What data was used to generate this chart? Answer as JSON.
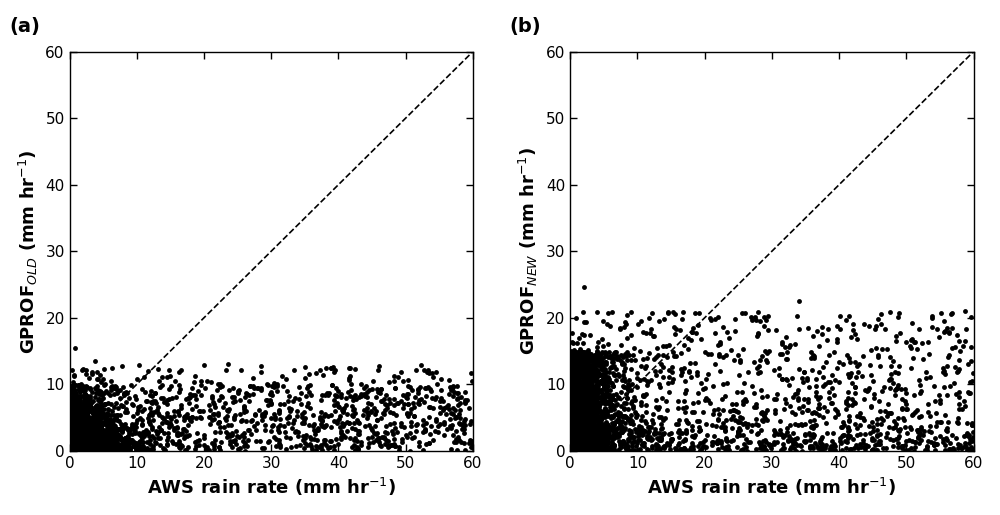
{
  "xlim": [
    0,
    60
  ],
  "ylim": [
    0,
    60
  ],
  "xticks": [
    0,
    10,
    20,
    30,
    40,
    50,
    60
  ],
  "yticks": [
    0,
    10,
    20,
    30,
    40,
    50,
    60
  ],
  "xlabel": "AWS rain rate (mm hr$^{-1}$)",
  "ylabel_a": "GPROF$_{OLD}$ (mm hr$^{-1}$)",
  "ylabel_b": "GPROF$_{NEW}$ (mm hr$^{-1}$)",
  "label_a": "(a)",
  "label_b": "(b)",
  "scatter_color": "#000000",
  "marker_size": 3.5,
  "marker": "o",
  "dashes_lw": 1.2,
  "background": "#ffffff",
  "n_points_a": 3500,
  "n_points_b": 3500,
  "seed_a": 42,
  "seed_b": 77,
  "tick_fontsize": 11,
  "label_fontsize": 13
}
